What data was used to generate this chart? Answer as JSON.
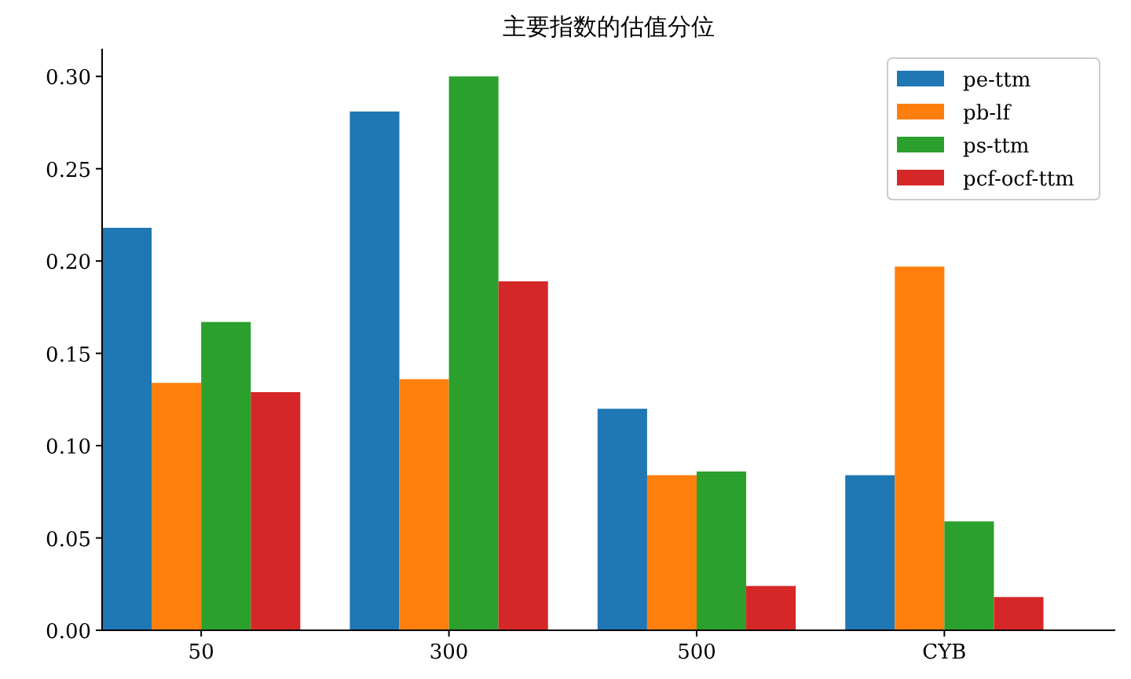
{
  "chart_data": {
    "type": "bar",
    "title": "主要指数的估值分位",
    "categories": [
      "50",
      "300",
      "500",
      "CYB"
    ],
    "series": [
      {
        "name": "pe-ttm",
        "color": "#1f77b4",
        "values": [
          0.218,
          0.281,
          0.12,
          0.084
        ]
      },
      {
        "name": "pb-lf",
        "color": "#ff7f0e",
        "values": [
          0.134,
          0.136,
          0.084,
          0.197
        ]
      },
      {
        "name": "ps-ttm",
        "color": "#2ca02c",
        "values": [
          0.167,
          0.3,
          0.086,
          0.059
        ]
      },
      {
        "name": "pcf-ocf-ttm",
        "color": "#d62728",
        "values": [
          0.129,
          0.189,
          0.024,
          0.018
        ]
      }
    ],
    "ylim": [
      0,
      0.315
    ],
    "yticks": [
      {
        "value": 0,
        "label": "0.00"
      },
      {
        "value": 0.05,
        "label": "0.05"
      },
      {
        "value": 0.1,
        "label": "0.10"
      },
      {
        "value": 0.15,
        "label": "0.15"
      },
      {
        "value": 0.2,
        "label": "0.20"
      },
      {
        "value": 0.25,
        "label": "0.25"
      },
      {
        "value": 0.3,
        "label": "0.30"
      }
    ],
    "legend": "top right",
    "grid": false
  }
}
